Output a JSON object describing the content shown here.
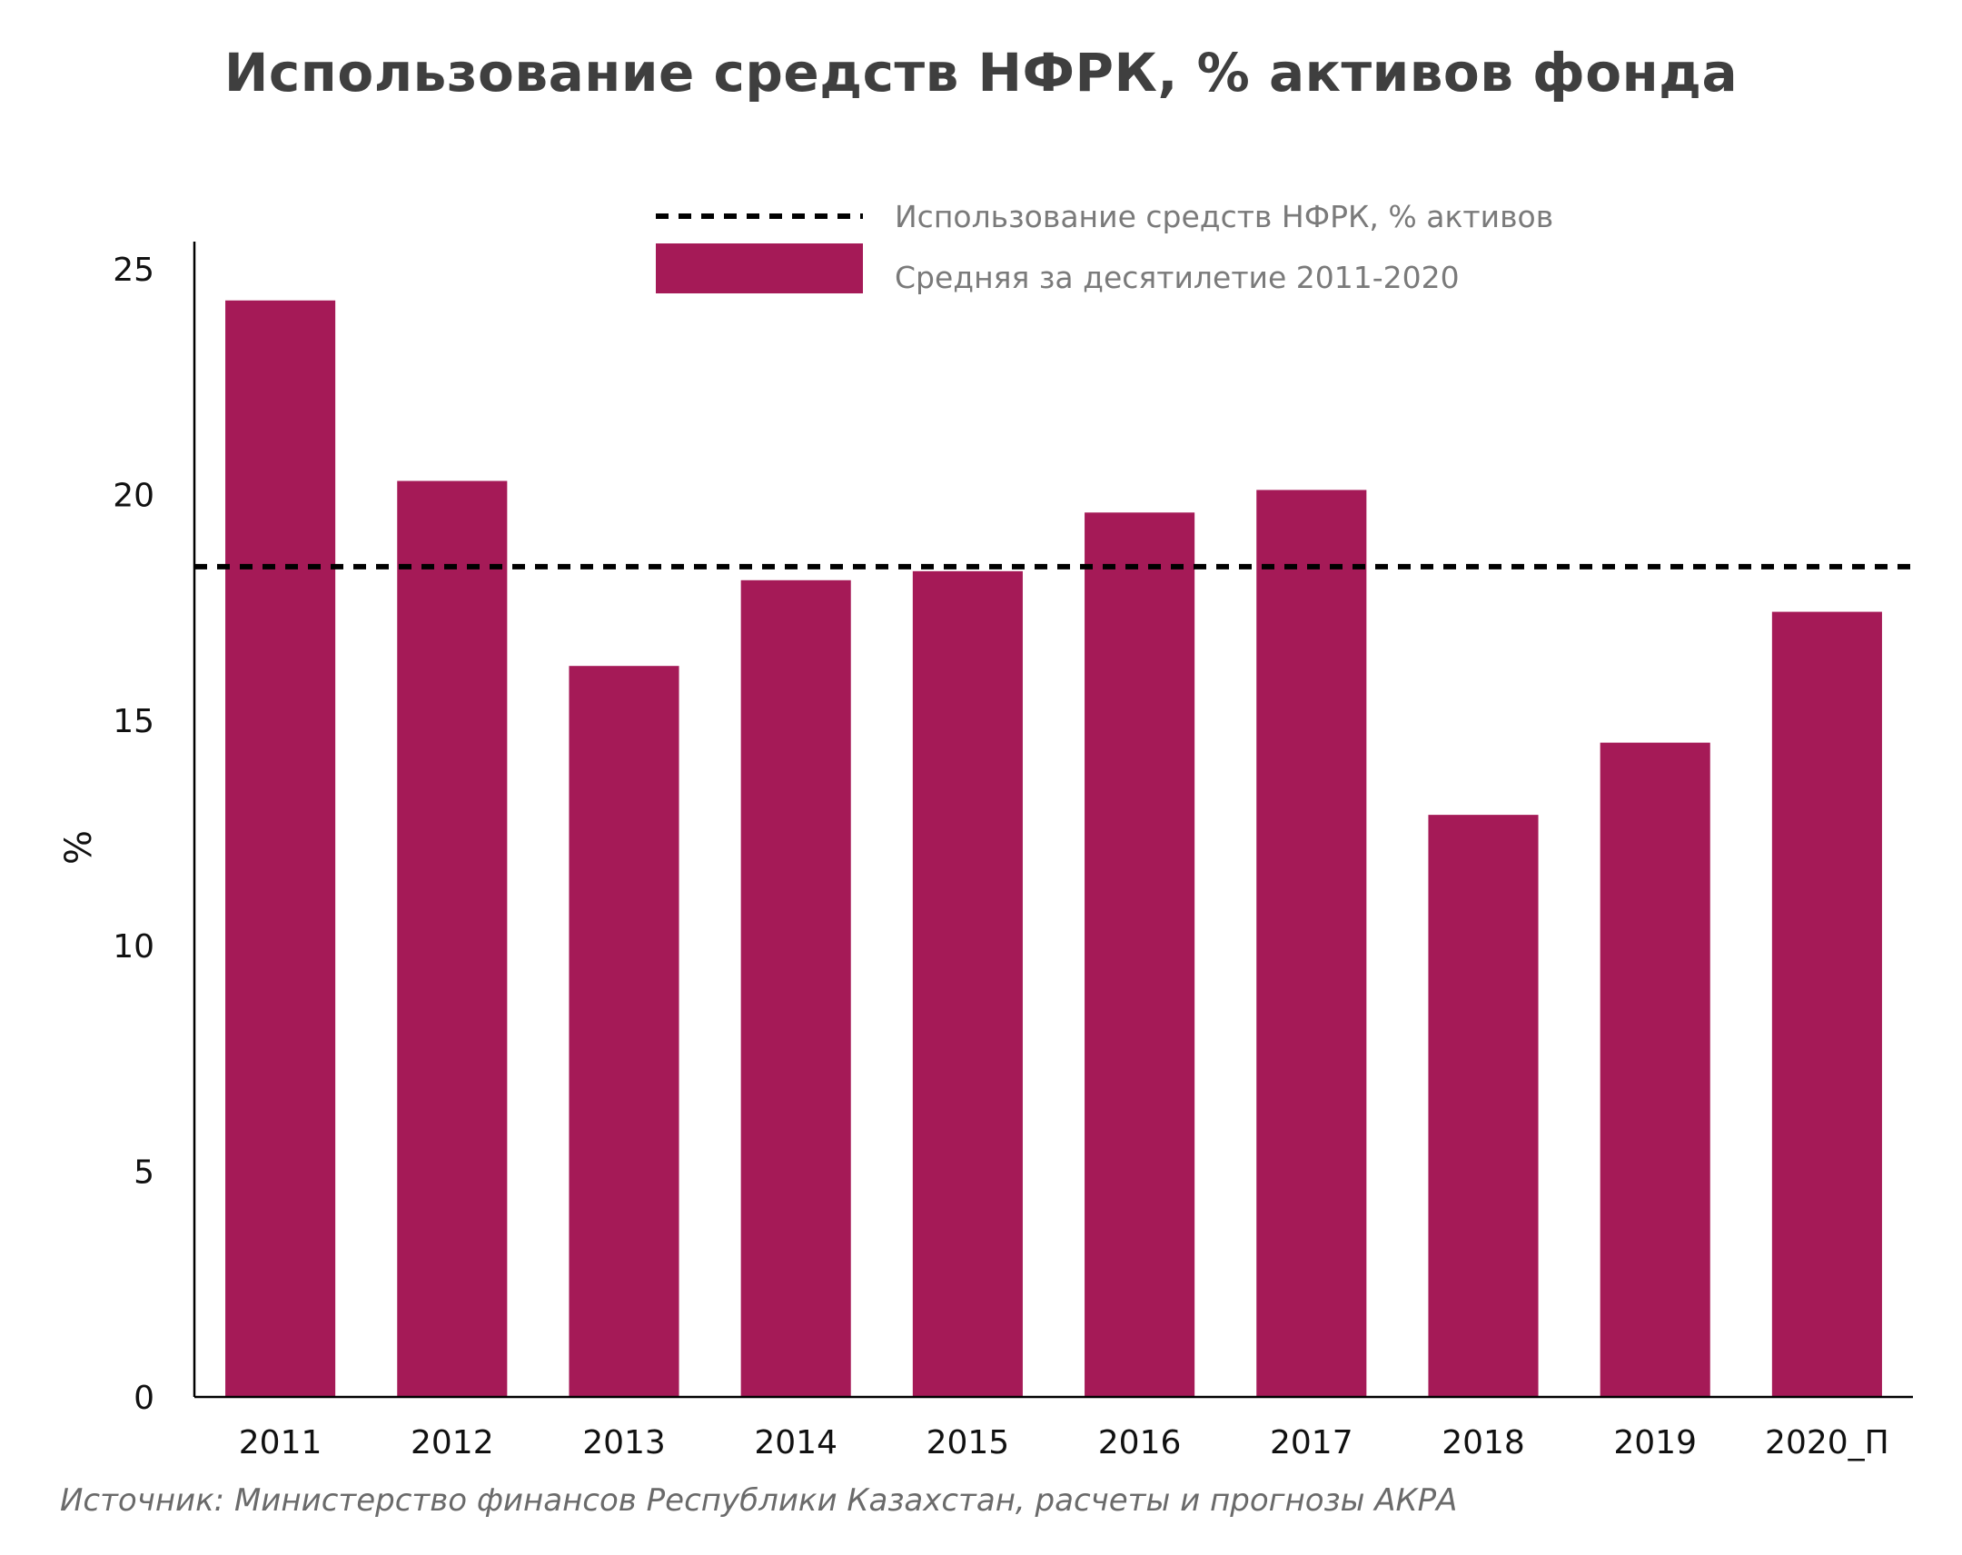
{
  "title": "Использование средств НФРК, % активов фонда",
  "source": "Источник: Министерство финансов Республики Казахстан, расчеты и прогнозы АКРА",
  "colors": {
    "bar": "#A51A57",
    "average_line": "#000000",
    "axis": "#000000",
    "title": "#3F3F3F",
    "legend_text": "#7A7A7A",
    "source_text": "#6A6A6A"
  },
  "chart_data": {
    "type": "bar",
    "title": "Использование средств НФРК, % активов фонда",
    "xlabel": "",
    "ylabel": "%",
    "categories": [
      "2011",
      "2012",
      "2013",
      "2014",
      "2015",
      "2016",
      "2017",
      "2018",
      "2019",
      "2020_П"
    ],
    "series": [
      {
        "name": "Средняя за десятилетие  2011-2020",
        "values": [
          24.3,
          20.3,
          16.2,
          18.1,
          18.3,
          19.6,
          20.1,
          12.9,
          14.5,
          17.4
        ]
      }
    ],
    "reference_line": {
      "name": "Использование средств НФРК, % активов",
      "value": 18.4,
      "style": "dashed"
    },
    "ylim": [
      0,
      25
    ],
    "yticks": [
      0,
      5,
      10,
      15,
      20,
      25
    ],
    "grid": false,
    "legend_position": "top-right"
  }
}
